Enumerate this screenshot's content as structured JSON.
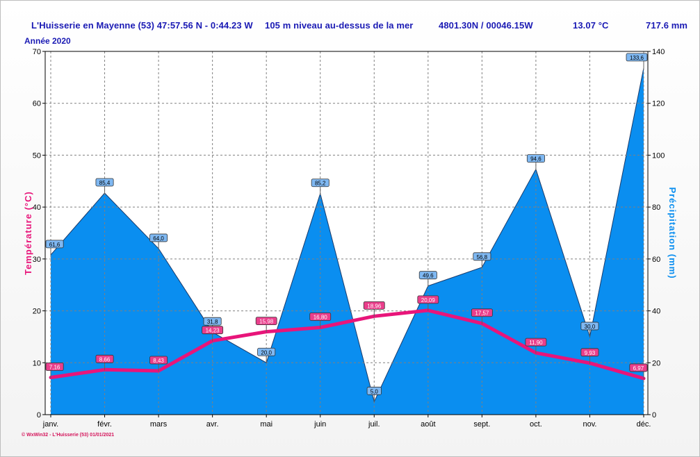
{
  "header": {
    "location": "L'Huisserie en Mayenne (53) 47:57.56 N - 0:44.23 W",
    "altitude": "105 m niveau au-dessus de la mer",
    "coords": "4801.30N / 00046.15W",
    "mean_temp": "13.07 °C",
    "total_precip": "717.6 mm",
    "year": "Année  2020"
  },
  "footer": "© WxWin32 - L'Huisserie (53)  01/01/2021",
  "colors": {
    "temperature": "#e8157a",
    "precipitation": "#0a8ef0",
    "header_text": "#1a1ab4"
  },
  "chart_data": {
    "type": "line",
    "categories": [
      "janv.",
      "févr.",
      "mars",
      "avr.",
      "mai",
      "juin",
      "juil.",
      "août",
      "sept.",
      "oct.",
      "nov.",
      "déc."
    ],
    "series": [
      {
        "name": "Température (°C)",
        "chart": "line",
        "axis": "left",
        "values": [
          7.16,
          8.66,
          8.43,
          14.23,
          15.98,
          16.8,
          18.96,
          20.09,
          17.57,
          11.9,
          9.93,
          6.97
        ],
        "labels": [
          "7,16",
          "8,66",
          "8,43",
          "14,23",
          "15,98",
          "16,80",
          "18,96",
          "20,09",
          "17,57",
          "11,90",
          "9,93",
          "6,97"
        ]
      },
      {
        "name": "Précipitation (mm)",
        "chart": "area",
        "axis": "right",
        "values": [
          61.6,
          85.4,
          64.0,
          31.8,
          20.0,
          85.2,
          5.0,
          49.6,
          56.8,
          94.6,
          30.0,
          133.6
        ],
        "labels": [
          "61,6",
          "85,4",
          "64,0",
          "31,8",
          "20,0",
          "85,2",
          "5,0",
          "49,6",
          "56,8",
          "94,6",
          "30,0",
          "133,6"
        ]
      }
    ],
    "ylabel": "Température  (°C)",
    "y2label": "Précipitation  (mm)",
    "ylim": [
      0,
      70
    ],
    "y2lim": [
      0,
      140
    ],
    "yticks": [
      0,
      10,
      20,
      30,
      40,
      50,
      60,
      70
    ],
    "y2ticks": [
      0,
      20,
      40,
      60,
      80,
      100,
      120,
      140
    ],
    "grid": true
  }
}
